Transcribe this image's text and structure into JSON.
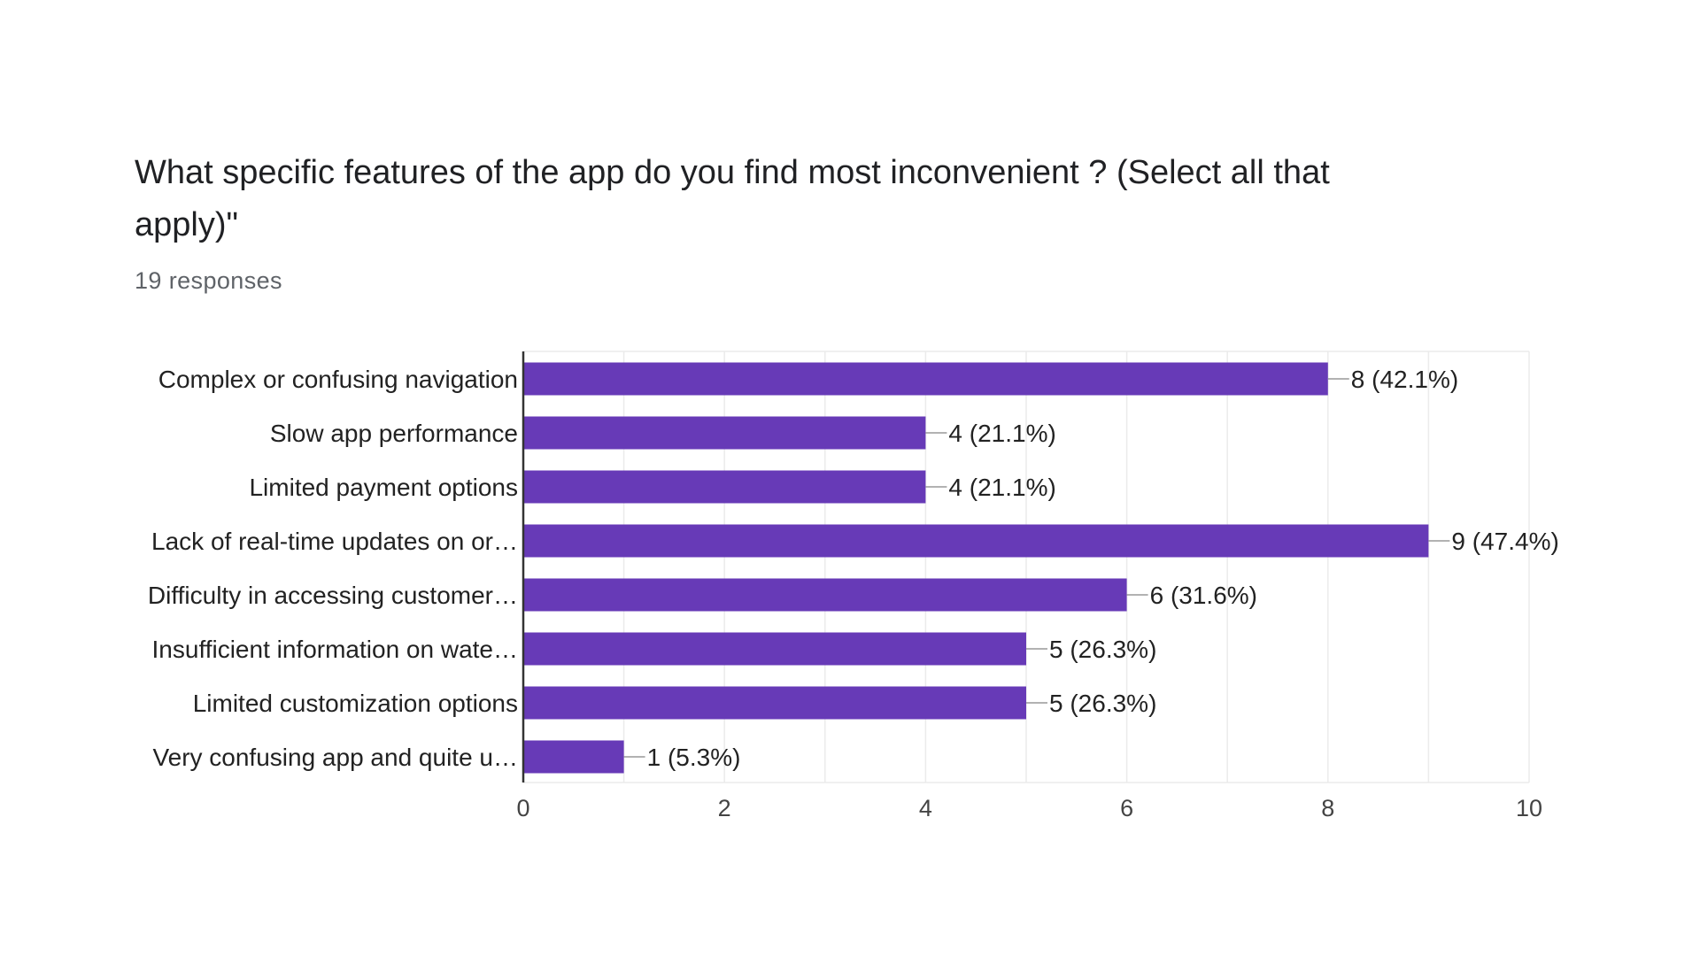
{
  "question": {
    "title": "What specific features of the app do you find most inconvenient ? (Select all that apply)\"",
    "responses": "19 responses"
  },
  "colors": {
    "bar": "#673ab7",
    "grid": "#ebebeb",
    "axis": "#333333",
    "leader": "#999999"
  },
  "chart_data": {
    "type": "bar",
    "orientation": "horizontal",
    "categories": [
      "Complex or confusing navigation",
      "Slow app performance",
      "Limited payment options",
      "Lack of real-time updates on or…",
      "Difficulty in accessing customer…",
      "Insufficient information on wate…",
      "Limited customization options",
      "Very confusing app and quite u…"
    ],
    "values": [
      8,
      4,
      4,
      9,
      6,
      5,
      5,
      1
    ],
    "data_labels": [
      "8 (42.1%)",
      "4 (21.1%)",
      "4 (21.1%)",
      "9 (47.4%)",
      "6 (31.6%)",
      "5 (26.3%)",
      "5 (26.3%)",
      "1 (5.3%)"
    ],
    "xlim": [
      0,
      10
    ],
    "x_ticks": [
      0,
      2,
      4,
      6,
      8,
      10
    ],
    "grid": true,
    "legend": "none"
  }
}
